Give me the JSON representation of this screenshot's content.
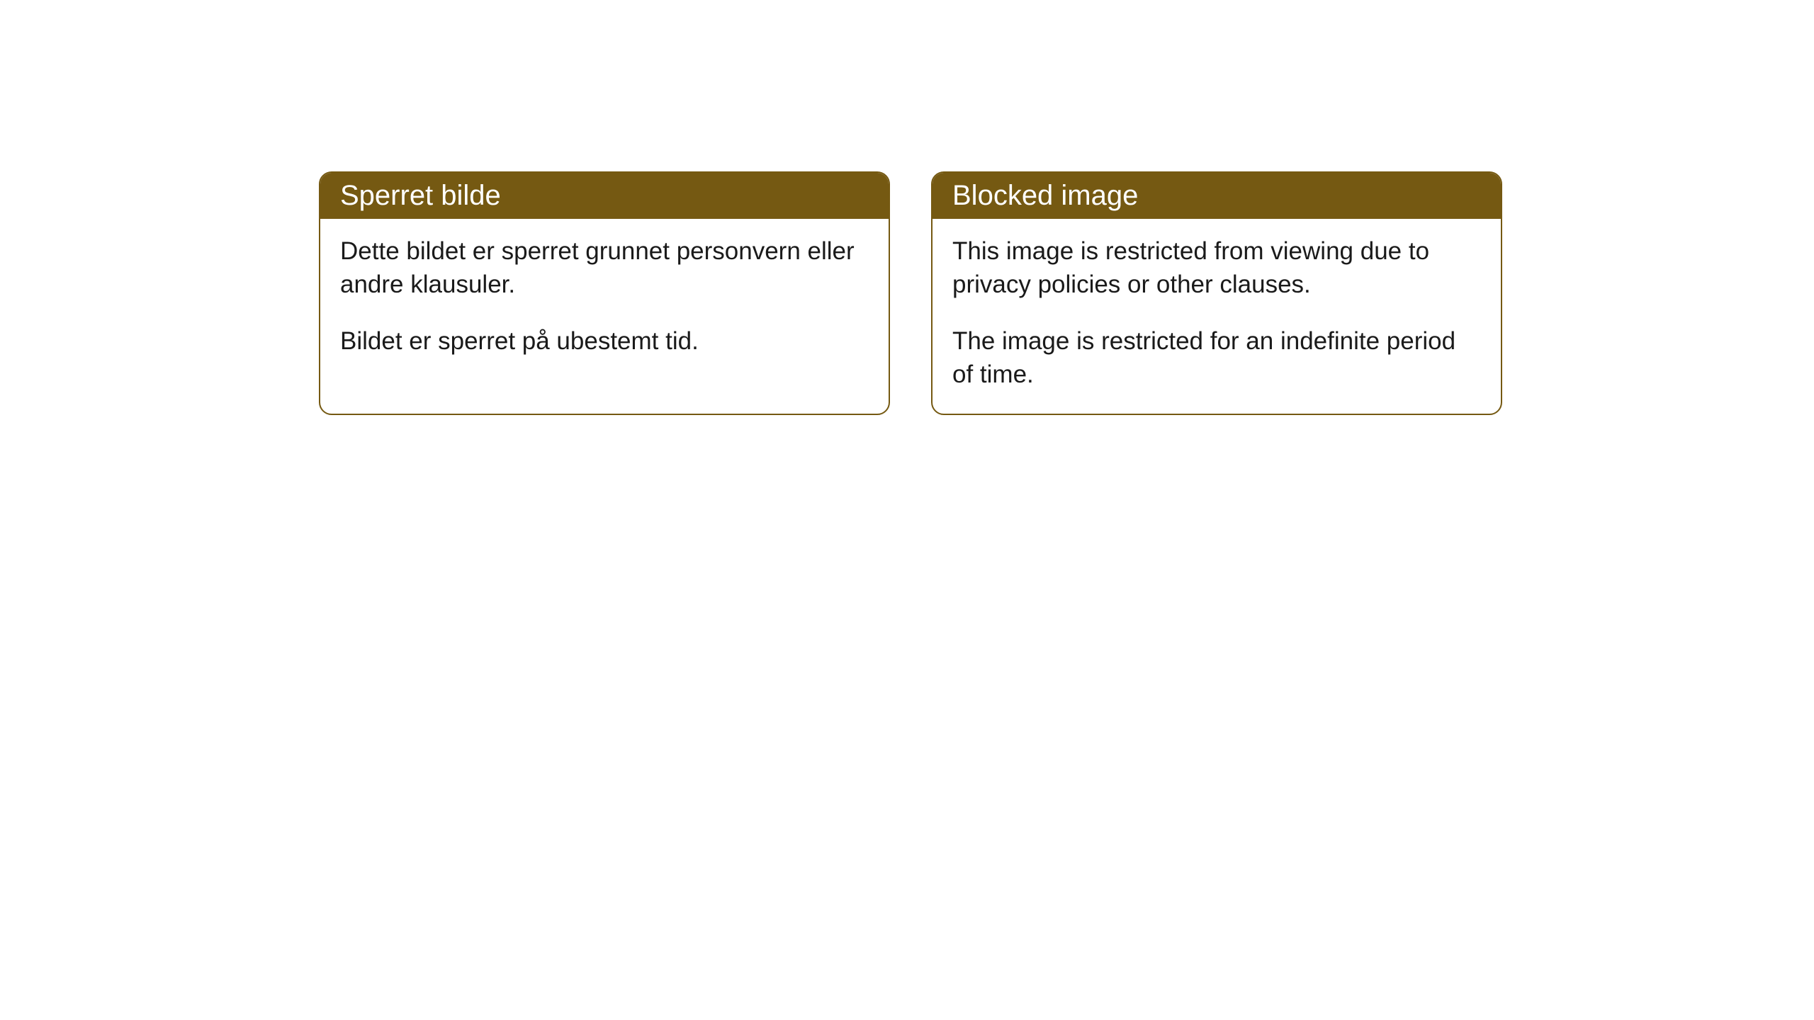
{
  "cards": [
    {
      "title": "Sperret bilde",
      "paragraph1": "Dette bildet er sperret grunnet personvern eller andre klausuler.",
      "paragraph2": "Bildet er sperret på ubestemt tid."
    },
    {
      "title": "Blocked image",
      "paragraph1": "This image is restricted from viewing due to privacy policies or other clauses.",
      "paragraph2": "The image is restricted for an indefinite period of time."
    }
  ],
  "styling": {
    "header_background": "#755912",
    "header_text_color": "#ffffff",
    "border_color": "#755912",
    "body_background": "#ffffff",
    "body_text_color": "#1a1a1a",
    "border_radius": 18,
    "header_fontsize": 40,
    "body_fontsize": 35
  }
}
